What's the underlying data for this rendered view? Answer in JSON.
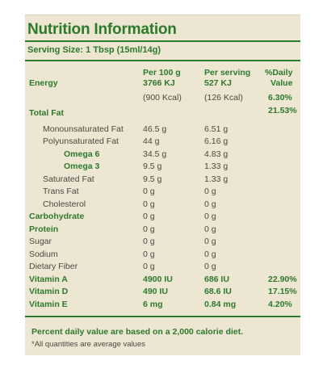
{
  "title": "Nutrition Information",
  "serving": "Serving Size: 1 Tbsp (15ml/14g)",
  "headers": {
    "per100": "Per 100 g",
    "perServing": "Per serving",
    "daily1": "%Daily",
    "daily2": "Value"
  },
  "energy": {
    "label": "Energy",
    "per100_kj": "3766 KJ",
    "serv_kj": "527 KJ",
    "per100_kcal": "(900 Kcal)",
    "serv_kcal": "(126 Kcal)",
    "dv": "6.30%"
  },
  "rows": [
    {
      "label": "Total Fat",
      "per100": "",
      "serv": "",
      "dv": "21.53%"
    },
    {
      "label": "Monounsaturated Fat",
      "per100": "46.5 g",
      "serv": "6.51 g",
      "dv": ""
    },
    {
      "label": "Polyunsaturated Fat",
      "per100": "44 g",
      "serv": "6.16 g",
      "dv": ""
    },
    {
      "label": "Omega 6",
      "per100": "34.5 g",
      "serv": "4.83 g",
      "dv": ""
    },
    {
      "label": "Omega 3",
      "per100": "9.5 g",
      "serv": "1.33 g",
      "dv": ""
    },
    {
      "label": "Saturated Fat",
      "per100": "9.5 g",
      "serv": "1.33 g",
      "dv": ""
    },
    {
      "label": "Trans Fat",
      "per100": "0 g",
      "serv": "0 g",
      "dv": ""
    },
    {
      "label": "Cholesterol",
      "per100": "0 g",
      "serv": "0 g",
      "dv": ""
    },
    {
      "label": "Carbohydrate",
      "per100": "0 g",
      "serv": "0 g",
      "dv": ""
    },
    {
      "label": "Protein",
      "per100": "0 g",
      "serv": "0 g",
      "dv": ""
    },
    {
      "label": "Sugar",
      "per100": "0 g",
      "serv": "0 g",
      "dv": ""
    },
    {
      "label": "Sodium",
      "per100": "0 g",
      "serv": "0 g",
      "dv": ""
    },
    {
      "label": "Dietary Fiber",
      "per100": "0 g",
      "serv": "0 g",
      "dv": ""
    },
    {
      "label": "Vitamin A",
      "per100": "4900 IU",
      "serv": "686 IU",
      "dv": "22.90%"
    },
    {
      "label": "Vitamin D",
      "per100": "490 IU",
      "serv": "68.6 IU",
      "dv": "17.15%"
    },
    {
      "label": "Vitamin E",
      "per100": "6 mg",
      "serv": "0.84 mg",
      "dv": "4.20%"
    }
  ],
  "footer": {
    "note1": "Percent daily value are based on a 2,000 calorie diet.",
    "note2": "*All quantities are average values"
  },
  "colors": {
    "green": "#2d7a2b",
    "panel": "#ece6d3",
    "text": "#4a4a40"
  }
}
